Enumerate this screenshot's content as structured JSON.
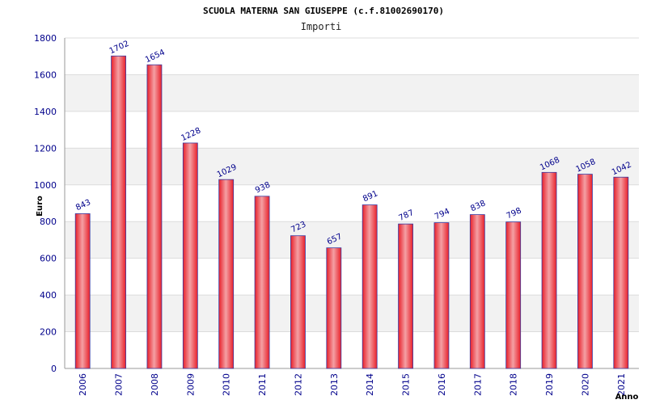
{
  "chart_data": {
    "type": "bar",
    "title": "SCUOLA MATERNA SAN GIUSEPPE (c.f.81002690170)",
    "subtitle": "Importi",
    "xlabel": "Anno",
    "ylabel": "Euro",
    "categories": [
      "2006",
      "2007",
      "2008",
      "2009",
      "2010",
      "2011",
      "2012",
      "2013",
      "2014",
      "2015",
      "2016",
      "2017",
      "2018",
      "2019",
      "2020",
      "2021"
    ],
    "values": [
      843,
      1702,
      1654,
      1228,
      1029,
      938,
      723,
      657,
      891,
      787,
      794,
      838,
      798,
      1068,
      1058,
      1042
    ],
    "ylim": [
      0,
      1800
    ],
    "yticks": [
      0,
      200,
      400,
      600,
      800,
      1000,
      1200,
      1400,
      1600,
      1800
    ],
    "grid": true,
    "colors": {
      "bar": "#e8202a",
      "bar_highlight": "#f4a0a4",
      "bar_edge": "#3a3aa0",
      "tick": "#00008b",
      "band": "#f2f2f2",
      "grid": "#dcdcdc"
    }
  }
}
